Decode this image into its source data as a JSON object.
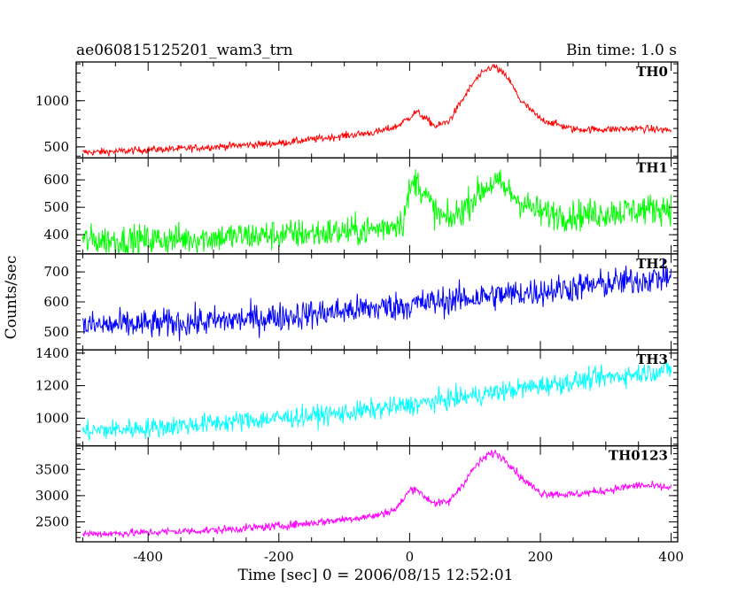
{
  "chart_data": {
    "type": "line",
    "title": "ae060815125201_wam3_trn",
    "subtitle": "Bin time: 1.0 s",
    "xlabel": "Time [sec] 0 = 2006/08/15 12:52:01",
    "ylabel": "Counts/sec",
    "xlim": [
      -510,
      410
    ],
    "x_ticks": [
      -400,
      -200,
      0,
      200,
      400
    ],
    "grid": false,
    "panels": [
      {
        "name": "TH0",
        "color": "#ff0000",
        "ylim": [
          380,
          1420
        ],
        "y_ticks": [
          500,
          1000
        ],
        "x": [
          -500,
          -450,
          -400,
          -350,
          -300,
          -250,
          -200,
          -150,
          -100,
          -50,
          -20,
          0,
          10,
          20,
          40,
          60,
          80,
          100,
          120,
          130,
          150,
          170,
          200,
          250,
          300,
          350,
          400
        ],
        "y": [
          440,
          450,
          470,
          480,
          500,
          520,
          540,
          580,
          620,
          660,
          720,
          820,
          880,
          830,
          720,
          780,
          1000,
          1220,
          1350,
          1370,
          1250,
          1000,
          800,
          690,
          690,
          700,
          680
        ],
        "noise": 28
      },
      {
        "name": "TH1",
        "color": "#00ff00",
        "ylim": [
          330,
          680
        ],
        "y_ticks": [
          400,
          500,
          600
        ],
        "x": [
          -500,
          -400,
          -300,
          -200,
          -100,
          -50,
          -10,
          0,
          10,
          20,
          40,
          60,
          80,
          100,
          120,
          130,
          140,
          150,
          170,
          200,
          250,
          300,
          350,
          400
        ],
        "y": [
          380,
          380,
          390,
          400,
          410,
          420,
          450,
          560,
          600,
          560,
          480,
          450,
          490,
          540,
          580,
          590,
          580,
          560,
          520,
          480,
          470,
          480,
          490,
          500
        ],
        "noise": 40
      },
      {
        "name": "TH2",
        "color": "#0000ff",
        "ylim": [
          440,
          760
        ],
        "y_ticks": [
          500,
          600,
          700
        ],
        "x": [
          -500,
          -400,
          -300,
          -200,
          -100,
          0,
          100,
          200,
          300,
          400
        ],
        "y": [
          520,
          525,
          535,
          550,
          570,
          590,
          615,
          635,
          660,
          685
        ],
        "noise": 35
      },
      {
        "name": "TH3",
        "color": "#00ffff",
        "ylim": [
          830,
          1420
        ],
        "y_ticks": [
          1000,
          1200,
          1400
        ],
        "x": [
          -500,
          -400,
          -300,
          -200,
          -100,
          0,
          100,
          200,
          300,
          400
        ],
        "y": [
          920,
          940,
          970,
          1000,
          1030,
          1080,
          1140,
          1200,
          1250,
          1300
        ],
        "noise": 45
      },
      {
        "name": "TH0123",
        "color": "#ff00ff",
        "ylim": [
          2120,
          3950
        ],
        "y_ticks": [
          2500,
          3000,
          3500
        ],
        "x": [
          -500,
          -450,
          -400,
          -350,
          -300,
          -250,
          -200,
          -150,
          -100,
          -50,
          -20,
          0,
          10,
          20,
          40,
          60,
          80,
          100,
          120,
          130,
          150,
          170,
          200,
          250,
          300,
          350,
          400
        ],
        "y": [
          2270,
          2280,
          2300,
          2320,
          2340,
          2380,
          2420,
          2480,
          2550,
          2620,
          2750,
          3100,
          3150,
          3000,
          2850,
          2880,
          3200,
          3550,
          3780,
          3820,
          3650,
          3350,
          3050,
          3020,
          3100,
          3200,
          3150
        ],
        "noise": 55
      }
    ]
  }
}
